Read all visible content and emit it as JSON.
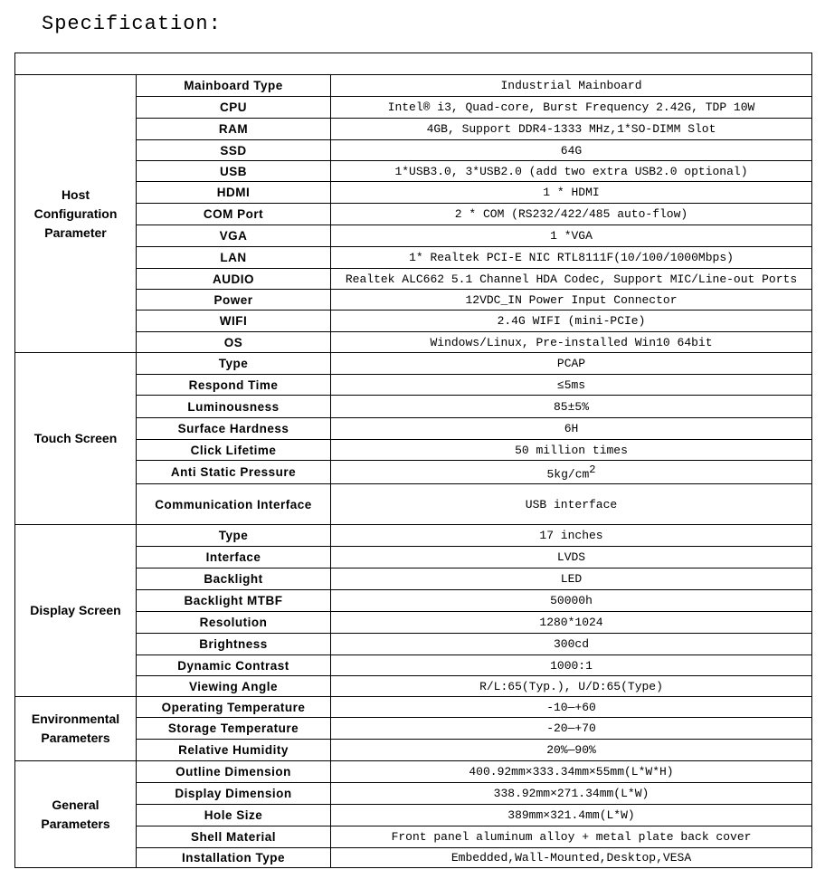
{
  "title": "Specification:",
  "sections": [
    {
      "group": "Host Configuration Parameter",
      "rows": [
        {
          "label": "Mainboard Type",
          "value": "Industrial Mainboard",
          "h": 24
        },
        {
          "label": "CPU",
          "value": "Intel® i3, Quad-core, Burst Frequency 2.42G, TDP 10W",
          "h": 24
        },
        {
          "label": "RAM",
          "value": "4GB, Support DDR4-1333 MHz,1*SO-DIMM Slot",
          "h": 24
        },
        {
          "label": "SSD",
          "value": "64G",
          "h": 23
        },
        {
          "label": "USB",
          "value": "1*USB3.0, 3*USB2.0 (add two extra USB2.0 optional)",
          "h": 23
        },
        {
          "label": "HDMI",
          "value": "1 * HDMI",
          "h": 24
        },
        {
          "label": "COM Port",
          "value": "2 * COM (RS232/422/485 auto-flow)",
          "h": 24
        },
        {
          "label": "VGA",
          "value": "1 *VGA",
          "h": 24
        },
        {
          "label": "LAN",
          "value": "1* Realtek PCI-E NIC RTL8111F(10/100/1000Mbps)",
          "h": 24
        },
        {
          "label": "AUDIO",
          "value": "Realtek ALC662 5.1 Channel HDA Codec, Support MIC/Line-out Ports",
          "h": 23
        },
        {
          "label": "Power",
          "value": "12VDC_IN Power Input Connector",
          "h": 23
        },
        {
          "label": "WIFI",
          "value": "2.4G WIFI (mini-PCIe)",
          "h": 24
        },
        {
          "label": "OS",
          "value": "Windows/Linux,  Pre-installed Win10 64bit",
          "h": 23
        }
      ]
    },
    {
      "group": "Touch Screen",
      "rows": [
        {
          "label": "Type",
          "value": "PCAP",
          "h": 24
        },
        {
          "label": "Respond Time",
          "value": "≤5ms",
          "h": 23
        },
        {
          "label": "Luminousness",
          "value": "85±5%",
          "h": 25
        },
        {
          "label": "Surface Hardness",
          "value": "6H",
          "h": 24
        },
        {
          "label": "Click Lifetime",
          "value": "50 million times",
          "h": 23
        },
        {
          "label": "Anti Static Pressure",
          "value": "5kg/cm",
          "sup": "2",
          "h": 25
        },
        {
          "label": "Communication Interface",
          "value": "USB interface",
          "h": 45
        }
      ]
    },
    {
      "group": "Display Screen",
      "rows": [
        {
          "label": "Type",
          "value": "17 inches",
          "h": 24
        },
        {
          "label": "Interface",
          "value": "LVDS",
          "h": 24
        },
        {
          "label": "Backlight",
          "value": "LED",
          "h": 24
        },
        {
          "label": "Backlight MTBF",
          "value": "50000h",
          "h": 24
        },
        {
          "label": "Resolution",
          "value": "1280*1024",
          "h": 24
        },
        {
          "label": "Brightness",
          "value": "300cd",
          "h": 24
        },
        {
          "label": "Dynamic Contrast",
          "value": "1000:1",
          "h": 23
        },
        {
          "label": "Viewing Angle",
          "value": "R/L:65(Typ.), U/D:65(Type)",
          "h": 23
        }
      ]
    },
    {
      "group": "Environmental Parameters",
      "rows": [
        {
          "label": "Operating Temperature",
          "value": "-10—+60",
          "h": 23
        },
        {
          "label": "Storage Temperature",
          "value": "-20—+70",
          "h": 24
        },
        {
          "label": "Relative Humidity",
          "value": "20%—90%",
          "h": 24
        }
      ]
    },
    {
      "group": "General Parameters",
      "rows": [
        {
          "label": "Outline Dimension",
          "value": "400.92mm×333.34mm×55mm(L*W*H)",
          "h": 24
        },
        {
          "label": "Display Dimension",
          "value": "338.92mm×271.34mm(L*W)",
          "h": 24
        },
        {
          "label": "Hole Size",
          "value": "389mm×321.4mm(L*W)",
          "h": 24
        },
        {
          "label": "Shell Material",
          "value": "Front panel aluminum alloy + metal plate back cover",
          "h": 24
        },
        {
          "label": "Installation Type",
          "value": "Embedded,Wall-Mounted,Desktop,VESA",
          "h": 21
        }
      ]
    }
  ]
}
